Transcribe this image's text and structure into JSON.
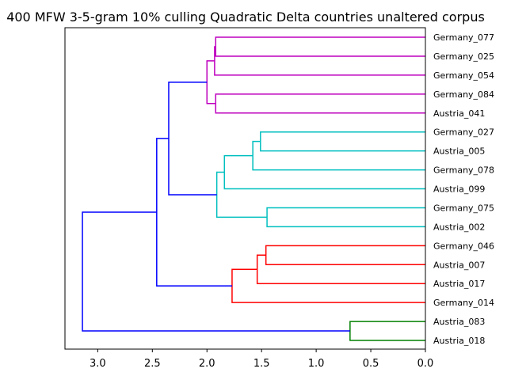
{
  "chart_data": {
    "type": "dendrogram",
    "title": "400 MFW 3-5-gram 10% culling Quadratic Delta countries unaltered corpus",
    "orientation": "left",
    "xlim": [
      3.3,
      0.0
    ],
    "x_ticks": [
      {
        "value": 3.0,
        "label": "3.0"
      },
      {
        "value": 2.5,
        "label": "2.5"
      },
      {
        "value": 2.0,
        "label": "2.0"
      },
      {
        "value": 1.5,
        "label": "1.5"
      },
      {
        "value": 1.0,
        "label": "1.0"
      },
      {
        "value": 0.5,
        "label": "0.5"
      },
      {
        "value": 0.0,
        "label": "0.0"
      }
    ],
    "leaves": [
      "Germany_077",
      "Germany_025",
      "Germany_054",
      "Germany_084",
      "Austria_041",
      "Germany_027",
      "Austria_005",
      "Germany_078",
      "Austria_099",
      "Germany_075",
      "Austria_002",
      "Germany_046",
      "Austria_007",
      "Austria_017",
      "Germany_014",
      "Austria_083",
      "Austria_018"
    ],
    "colors": {
      "magenta": "#bf00bf",
      "cyan": "#00bfbf",
      "red": "#ff0000",
      "green": "#008000",
      "blue": "#0000ff"
    },
    "merges": [
      {
        "a": 0,
        "b": 1,
        "height": 1.92,
        "color": "magenta"
      },
      {
        "a": 17,
        "b": 2,
        "height": 1.93,
        "color": "magenta"
      },
      {
        "a": 3,
        "b": 4,
        "height": 1.92,
        "color": "magenta"
      },
      {
        "a": 18,
        "b": 19,
        "height": 2.0,
        "color": "magenta"
      },
      {
        "a": 5,
        "b": 6,
        "height": 1.51,
        "color": "cyan"
      },
      {
        "a": 21,
        "b": 7,
        "height": 1.58,
        "color": "cyan"
      },
      {
        "a": 22,
        "b": 8,
        "height": 1.84,
        "color": "cyan"
      },
      {
        "a": 9,
        "b": 10,
        "height": 1.45,
        "color": "cyan"
      },
      {
        "a": 23,
        "b": 24,
        "height": 1.91,
        "color": "cyan"
      },
      {
        "a": 20,
        "b": 25,
        "height": 2.35,
        "color": "blue"
      },
      {
        "a": 11,
        "b": 12,
        "height": 1.46,
        "color": "red"
      },
      {
        "a": 27,
        "b": 13,
        "height": 1.54,
        "color": "red"
      },
      {
        "a": 28,
        "b": 14,
        "height": 1.77,
        "color": "red"
      },
      {
        "a": 26,
        "b": 29,
        "height": 2.46,
        "color": "blue"
      },
      {
        "a": 15,
        "b": 16,
        "height": 0.69,
        "color": "green"
      },
      {
        "a": 30,
        "b": 31,
        "height": 3.14,
        "color": "blue"
      }
    ]
  }
}
